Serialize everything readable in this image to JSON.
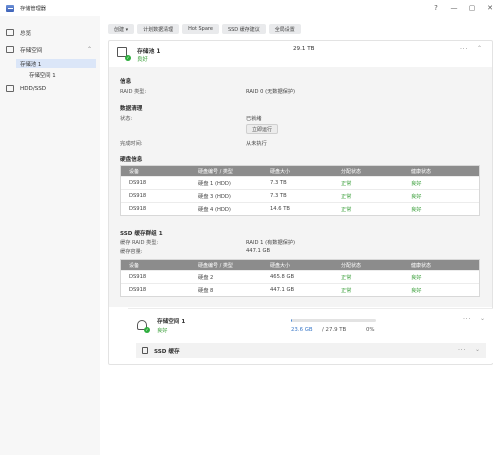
{
  "window": {
    "title": "存储管理器",
    "controls": [
      "?",
      "—",
      "▢",
      "✕"
    ]
  },
  "sidebar": {
    "items": [
      {
        "label": "总览",
        "icon": "overview-icon"
      },
      {
        "label": "存储空间",
        "icon": "storage-icon"
      },
      {
        "label": "HDD/SSD",
        "icon": "hdd-icon"
      }
    ],
    "sub_items": [
      {
        "label": "存储池 1",
        "active": true
      },
      {
        "label": "存储空间 1",
        "active": false
      }
    ]
  },
  "toolbar": {
    "create_label": "创建 ▾",
    "schedule_label": "计划数据清理",
    "hotspare_label": "Hot Spare",
    "ssd_label": "SSD 缓存建议",
    "global_label": "全局设置"
  },
  "pool": {
    "name": "存储池 1",
    "status": "良好",
    "capacity": "29.1 TB",
    "info_title": "信息",
    "raid_label": "RAID 类型:",
    "raid_value": "RAID 0 (无数据保护)",
    "scrub_title": "数据清理",
    "state_label": "状态:",
    "state_value": "已就绪",
    "run_label": "立即运行",
    "done_label": "完成时间:",
    "done_value": "从未执行",
    "disk_title": "硬盘信息",
    "disk_headers": [
      "设备",
      "硬盘编号 / 类型",
      "硬盘大小",
      "分配状态",
      "健康状态"
    ],
    "disks": [
      [
        "DS918",
        "硬盘 1 (HDD)",
        "7.3 TB",
        "正常",
        "良好"
      ],
      [
        "DS918",
        "硬盘 3 (HDD)",
        "7.3 TB",
        "正常",
        "良好"
      ],
      [
        "DS918",
        "硬盘 4 (HDD)",
        "14.6 TB",
        "正常",
        "良好"
      ]
    ],
    "ssd_title": "SSD 缓存群组 1",
    "cache_raid_label": "缓存 RAID 类型:",
    "cache_raid_value": "RAID 1 (有数据保护)",
    "cache_cap_label": "缓存容量:",
    "cache_cap_value": "447.1 GB",
    "ssd_headers": [
      "设备",
      "硬盘编号 / 类型",
      "硬盘大小",
      "分配状态",
      "健康状态"
    ],
    "ssds": [
      [
        "DS918",
        "硬盘 2",
        "465.8 GB",
        "正常",
        "良好"
      ],
      [
        "DS918",
        "硬盘 8",
        "447.1 GB",
        "正常",
        "良好"
      ]
    ]
  },
  "volume": {
    "name": "存储空间 1",
    "status": "良好",
    "used": "23.6 GB",
    "total": "/ 27.9 TB",
    "percent": "0%",
    "fill_fraction": 0.0
  },
  "ssd_cache": {
    "label": "SSD 缓存"
  },
  "colors": {
    "accent": "#3a78c8",
    "ok": "#3a9f3a",
    "table_header": "#8c8c8c"
  }
}
